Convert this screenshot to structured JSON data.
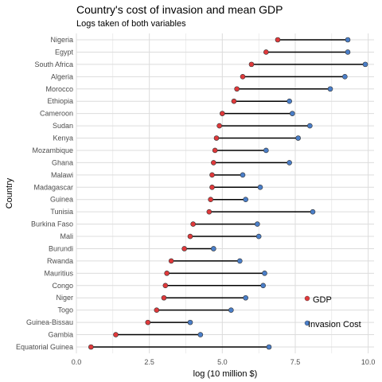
{
  "chart_data": {
    "type": "dumbbell",
    "title": "Country's cost of invasion and mean GDP",
    "subtitle": "Logs taken of both variables",
    "xlabel": "log (10 million $)",
    "ylabel": "Country",
    "xlim": [
      0,
      10.2
    ],
    "xticks": [
      0,
      2.5,
      5,
      7.5,
      10
    ],
    "xtick_labels": [
      "0.0",
      "2.5",
      "5.0",
      "7.5",
      "10.0"
    ],
    "grid": true,
    "legend_position": "inside-bottom-right",
    "colors": {
      "gdp": "#e0393b",
      "invasion": "#4a7ec8",
      "line": "#000000",
      "grid": "#dcdcdc"
    },
    "series": [
      {
        "name": "GDP",
        "key": "gdp"
      },
      {
        "name": "Invasion Cost",
        "key": "invasion"
      }
    ],
    "countries": [
      {
        "name": "Nigeria",
        "gdp": 6.9,
        "invasion": 9.3
      },
      {
        "name": "Egypt",
        "gdp": 6.5,
        "invasion": 9.3
      },
      {
        "name": "South Africa",
        "gdp": 6.0,
        "invasion": 9.9
      },
      {
        "name": "Algeria",
        "gdp": 5.7,
        "invasion": 9.2
      },
      {
        "name": "Morocco",
        "gdp": 5.5,
        "invasion": 8.7
      },
      {
        "name": "Ethiopia",
        "gdp": 5.4,
        "invasion": 7.3
      },
      {
        "name": "Cameroon",
        "gdp": 5.0,
        "invasion": 7.4
      },
      {
        "name": "Sudan",
        "gdp": 4.9,
        "invasion": 8.0
      },
      {
        "name": "Kenya",
        "gdp": 4.8,
        "invasion": 7.6
      },
      {
        "name": "Mozambique",
        "gdp": 4.75,
        "invasion": 6.5
      },
      {
        "name": "Ghana",
        "gdp": 4.7,
        "invasion": 7.3
      },
      {
        "name": "Malawi",
        "gdp": 4.65,
        "invasion": 5.7
      },
      {
        "name": "Madagascar",
        "gdp": 4.65,
        "invasion": 6.3
      },
      {
        "name": "Guinea",
        "gdp": 4.6,
        "invasion": 5.8
      },
      {
        "name": "Tunisia",
        "gdp": 4.55,
        "invasion": 8.1
      },
      {
        "name": "Burkina Faso",
        "gdp": 4.0,
        "invasion": 6.2
      },
      {
        "name": "Mali",
        "gdp": 3.9,
        "invasion": 6.25
      },
      {
        "name": "Burundi",
        "gdp": 3.7,
        "invasion": 4.7
      },
      {
        "name": "Rwanda",
        "gdp": 3.25,
        "invasion": 5.6
      },
      {
        "name": "Mauritius",
        "gdp": 3.1,
        "invasion": 6.45
      },
      {
        "name": "Congo",
        "gdp": 3.05,
        "invasion": 6.4
      },
      {
        "name": "Niger",
        "gdp": 3.0,
        "invasion": 5.8
      },
      {
        "name": "Togo",
        "gdp": 2.75,
        "invasion": 5.3
      },
      {
        "name": "Guinea-Bissau",
        "gdp": 2.45,
        "invasion": 3.9
      },
      {
        "name": "Gambia",
        "gdp": 1.35,
        "invasion": 4.25
      },
      {
        "name": "Equatorial Guinea",
        "gdp": 0.5,
        "invasion": 6.6
      }
    ]
  }
}
